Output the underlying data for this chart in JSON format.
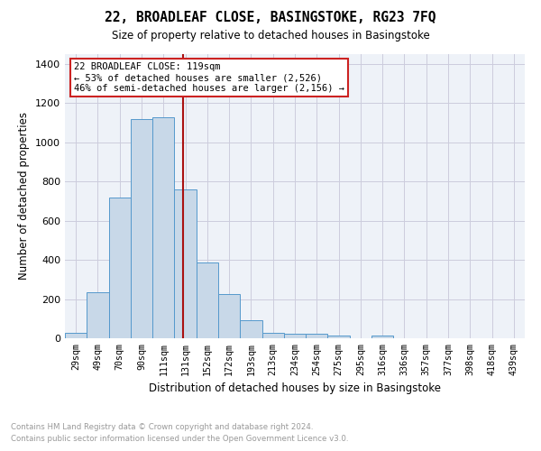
{
  "title": "22, BROADLEAF CLOSE, BASINGSTOKE, RG23 7FQ",
  "subtitle": "Size of property relative to detached houses in Basingstoke",
  "xlabel": "Distribution of detached houses by size in Basingstoke",
  "ylabel": "Number of detached properties",
  "footnote1": "Contains HM Land Registry data © Crown copyright and database right 2024.",
  "footnote2": "Contains public sector information licensed under the Open Government Licence v3.0.",
  "annotation_line1": "22 BROADLEAF CLOSE: 119sqm",
  "annotation_line2": "← 53% of detached houses are smaller (2,526)",
  "annotation_line3": "46% of semi-detached houses are larger (2,156) →",
  "bar_labels": [
    "29sqm",
    "49sqm",
    "70sqm",
    "90sqm",
    "111sqm",
    "131sqm",
    "152sqm",
    "172sqm",
    "193sqm",
    "213sqm",
    "234sqm",
    "254sqm",
    "275sqm",
    "295sqm",
    "316sqm",
    "336sqm",
    "357sqm",
    "377sqm",
    "398sqm",
    "418sqm",
    "439sqm"
  ],
  "bar_values": [
    28,
    235,
    720,
    1120,
    1130,
    760,
    385,
    225,
    90,
    28,
    22,
    22,
    15,
    0,
    12,
    0,
    0,
    0,
    0,
    0,
    0
  ],
  "bar_color": "#c8d8e8",
  "bar_edge_color": "#5599cc",
  "vline_x": 4.9,
  "vline_color": "#aa1111",
  "ylim": [
    0,
    1450
  ],
  "yticks": [
    0,
    200,
    400,
    600,
    800,
    1000,
    1200,
    1400
  ],
  "grid_color": "#ccccdd",
  "background_color": "#eef2f8",
  "figsize": [
    6.0,
    5.0
  ],
  "dpi": 100
}
